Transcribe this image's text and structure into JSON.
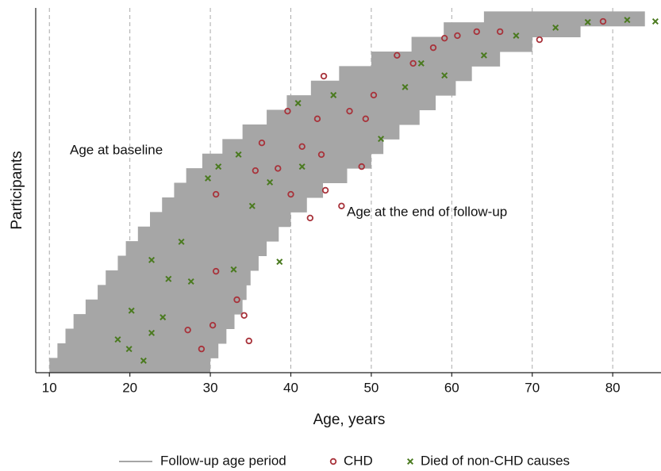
{
  "chart_data": {
    "type": "range-scatter",
    "xlabel": "Age, years",
    "ylabel": "Participants",
    "annotations": [
      "Age at baseline",
      "Age at the end of follow-up"
    ],
    "xlim": [
      8.3,
      86
    ],
    "xticks": [
      10,
      20,
      30,
      40,
      50,
      60,
      70,
      80
    ],
    "ylim": [
      0,
      100
    ],
    "grid": true,
    "segments": {
      "name": "Follow-up age period",
      "color": "#a6a6a6",
      "y": [
        2,
        6,
        10,
        14,
        18,
        22,
        26,
        30,
        34,
        38,
        42,
        46,
        50,
        54,
        58,
        62,
        66,
        70,
        74,
        78,
        82,
        86,
        90,
        94,
        97
      ],
      "start": [
        10,
        11,
        12,
        13,
        14.5,
        16,
        17,
        18.5,
        19.5,
        21,
        22.5,
        24,
        25.5,
        27,
        29,
        31.5,
        34,
        37,
        39.5,
        42.5,
        46,
        50,
        55,
        59,
        64
      ],
      "end": [
        30,
        31,
        32,
        33,
        34,
        34.5,
        35,
        36,
        37,
        38.5,
        40,
        42,
        44,
        47,
        50,
        51.5,
        53.5,
        56,
        58,
        60.5,
        62.5,
        66,
        70,
        76,
        84
      ]
    },
    "series": [
      {
        "name": "CHD",
        "color": "#a8323a",
        "marker": "circle",
        "x": [
          28.9,
          30.3,
          30.7,
          33.3,
          34.2,
          30.7,
          35.6,
          36.4,
          39.6,
          40,
          44.1,
          43.3,
          44.3,
          46.3,
          47.3,
          49.3,
          50.3,
          53.2,
          55.2,
          57.7,
          60.7,
          63.1,
          66,
          70.9,
          78.8,
          38.4,
          42.4,
          34.8,
          27.2,
          41.4,
          48.8,
          43.8,
          59.1
        ],
        "y": [
          6.5,
          13,
          27.8,
          20,
          15.7,
          48.9,
          55.4,
          63,
          71.7,
          48.9,
          81.3,
          69.6,
          50,
          45.7,
          71.7,
          69.6,
          76.1,
          87,
          84.8,
          89.1,
          92.4,
          93.5,
          93.5,
          91.3,
          96.3,
          56,
          42.4,
          8.7,
          11.7,
          62,
          56.5,
          59.8,
          91.7
        ]
      },
      {
        "name": "Died of non-CHD causes",
        "color": "#4a7a1f",
        "marker": "x",
        "x": [
          18.5,
          19.9,
          21.7,
          20.2,
          22.7,
          24.8,
          26.4,
          27.6,
          29.7,
          31,
          33.5,
          35.2,
          32.9,
          37.4,
          40.9,
          41.4,
          45.3,
          51.2,
          54.2,
          56.2,
          59.1,
          64,
          68,
          72.9,
          76.9,
          81.8,
          85.3,
          24.1,
          22.7,
          38.6
        ],
        "y": [
          9.1,
          6.5,
          3.3,
          17,
          30.9,
          25.7,
          35.9,
          25,
          53.3,
          56.5,
          59.8,
          45.7,
          28.3,
          52.2,
          73.9,
          56.5,
          76.1,
          64.1,
          78.3,
          84.8,
          81.5,
          87,
          92.4,
          94.6,
          96.1,
          96.7,
          96.3,
          15.2,
          10.9,
          30.4
        ]
      }
    ]
  }
}
